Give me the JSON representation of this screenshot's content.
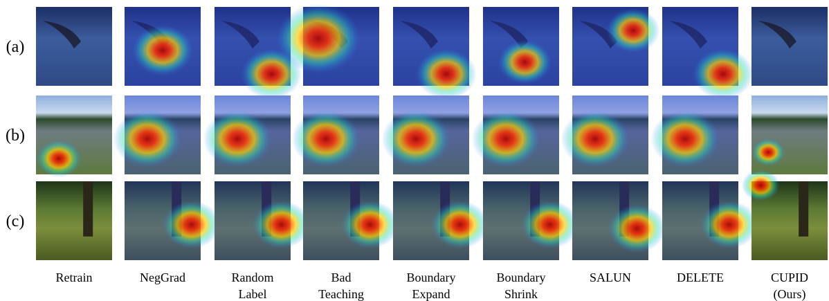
{
  "rows": [
    "(a)",
    "(b)",
    "(c)"
  ],
  "columns": [
    [
      "Retrain"
    ],
    [
      "NegGrad"
    ],
    [
      "Random",
      "Label"
    ],
    [
      "Bad",
      "Teaching"
    ],
    [
      "Boundary",
      "Expand"
    ],
    [
      "Boundary",
      "Shrink"
    ],
    [
      "SALUN"
    ],
    [
      "DELETE"
    ],
    [
      "CUPID",
      "(Ours)"
    ]
  ]
}
